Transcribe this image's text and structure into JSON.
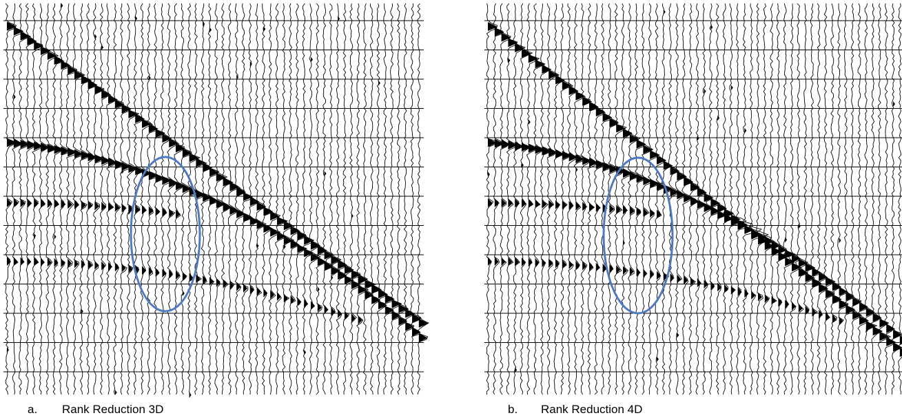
{
  "panels": [
    {
      "letter": "a.",
      "caption": "Rank Reduction 3D"
    },
    {
      "letter": "b.",
      "caption": "Rank Reduction 4D"
    }
  ]
}
